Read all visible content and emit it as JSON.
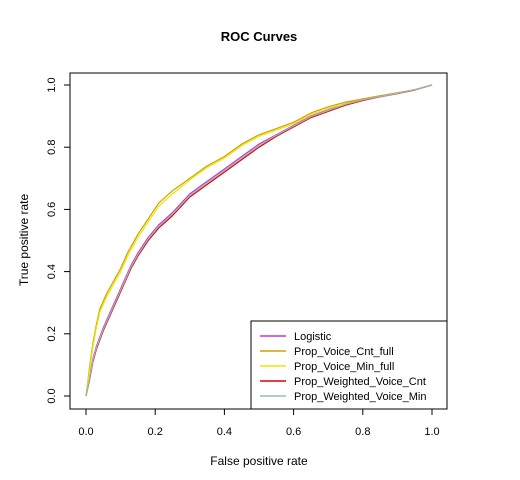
{
  "chart_data": {
    "type": "line",
    "title": "ROC Curves",
    "xlabel": "False positive rate",
    "ylabel": "True positive rate",
    "xlim": [
      0,
      1
    ],
    "ylim": [
      0,
      1
    ],
    "x_ticks": [
      "0.0",
      "0.2",
      "0.4",
      "0.6",
      "0.8",
      "1.0"
    ],
    "y_ticks": [
      "0.0",
      "0.2",
      "0.4",
      "0.6",
      "0.8",
      "1.0"
    ],
    "grid": false,
    "legend_position": "bottom-right",
    "series": [
      {
        "name": "Logistic",
        "color": "#cc33cc",
        "points": [
          [
            0,
            0
          ],
          [
            0.01,
            0.06
          ],
          [
            0.02,
            0.12
          ],
          [
            0.03,
            0.16
          ],
          [
            0.05,
            0.22
          ],
          [
            0.07,
            0.27
          ],
          [
            0.09,
            0.32
          ],
          [
            0.11,
            0.37
          ],
          [
            0.13,
            0.42
          ],
          [
            0.15,
            0.46
          ],
          [
            0.18,
            0.51
          ],
          [
            0.21,
            0.55
          ],
          [
            0.25,
            0.59
          ],
          [
            0.3,
            0.65
          ],
          [
            0.35,
            0.69
          ],
          [
            0.4,
            0.73
          ],
          [
            0.45,
            0.77
          ],
          [
            0.5,
            0.81
          ],
          [
            0.55,
            0.84
          ],
          [
            0.6,
            0.87
          ],
          [
            0.65,
            0.9
          ],
          [
            0.7,
            0.92
          ],
          [
            0.75,
            0.94
          ],
          [
            0.8,
            0.955
          ],
          [
            0.85,
            0.965
          ],
          [
            0.9,
            0.975
          ],
          [
            0.95,
            0.985
          ],
          [
            1,
            1
          ]
        ]
      },
      {
        "name": "Prop_Voice_Cnt_full",
        "color": "#d4a000",
        "points": [
          [
            0,
            0
          ],
          [
            0.01,
            0.09
          ],
          [
            0.02,
            0.17
          ],
          [
            0.03,
            0.23
          ],
          [
            0.04,
            0.28
          ],
          [
            0.06,
            0.33
          ],
          [
            0.08,
            0.37
          ],
          [
            0.1,
            0.41
          ],
          [
            0.12,
            0.46
          ],
          [
            0.15,
            0.52
          ],
          [
            0.18,
            0.57
          ],
          [
            0.21,
            0.62
          ],
          [
            0.25,
            0.66
          ],
          [
            0.3,
            0.7
          ],
          [
            0.35,
            0.74
          ],
          [
            0.4,
            0.77
          ],
          [
            0.45,
            0.81
          ],
          [
            0.5,
            0.84
          ],
          [
            0.55,
            0.86
          ],
          [
            0.6,
            0.88
          ],
          [
            0.65,
            0.91
          ],
          [
            0.7,
            0.93
          ],
          [
            0.75,
            0.945
          ],
          [
            0.8,
            0.955
          ],
          [
            0.85,
            0.965
          ],
          [
            0.9,
            0.975
          ],
          [
            0.95,
            0.985
          ],
          [
            1,
            1
          ]
        ]
      },
      {
        "name": "Prop_Voice_Min_full",
        "color": "#e8e800",
        "points": [
          [
            0,
            0
          ],
          [
            0.01,
            0.08
          ],
          [
            0.02,
            0.16
          ],
          [
            0.03,
            0.22
          ],
          [
            0.04,
            0.27
          ],
          [
            0.06,
            0.32
          ],
          [
            0.08,
            0.36
          ],
          [
            0.1,
            0.4
          ],
          [
            0.12,
            0.45
          ],
          [
            0.15,
            0.51
          ],
          [
            0.18,
            0.56
          ],
          [
            0.21,
            0.61
          ],
          [
            0.25,
            0.65
          ],
          [
            0.3,
            0.695
          ],
          [
            0.35,
            0.735
          ],
          [
            0.4,
            0.765
          ],
          [
            0.45,
            0.805
          ],
          [
            0.5,
            0.835
          ],
          [
            0.55,
            0.855
          ],
          [
            0.6,
            0.875
          ],
          [
            0.65,
            0.905
          ],
          [
            0.7,
            0.925
          ],
          [
            0.75,
            0.94
          ],
          [
            0.8,
            0.952
          ],
          [
            0.85,
            0.962
          ],
          [
            0.9,
            0.973
          ],
          [
            0.95,
            0.984
          ],
          [
            1,
            1
          ]
        ]
      },
      {
        "name": "Prop_Weighted_Voice_Cnt",
        "color": "#dd0000",
        "points": [
          [
            0,
            0
          ],
          [
            0.01,
            0.05
          ],
          [
            0.02,
            0.11
          ],
          [
            0.03,
            0.15
          ],
          [
            0.05,
            0.21
          ],
          [
            0.07,
            0.26
          ],
          [
            0.09,
            0.31
          ],
          [
            0.11,
            0.36
          ],
          [
            0.13,
            0.41
          ],
          [
            0.15,
            0.45
          ],
          [
            0.18,
            0.5
          ],
          [
            0.21,
            0.54
          ],
          [
            0.25,
            0.58
          ],
          [
            0.3,
            0.64
          ],
          [
            0.35,
            0.68
          ],
          [
            0.4,
            0.72
          ],
          [
            0.45,
            0.76
          ],
          [
            0.5,
            0.8
          ],
          [
            0.55,
            0.835
          ],
          [
            0.6,
            0.865
          ],
          [
            0.65,
            0.895
          ],
          [
            0.7,
            0.915
          ],
          [
            0.75,
            0.935
          ],
          [
            0.8,
            0.95
          ],
          [
            0.85,
            0.962
          ],
          [
            0.9,
            0.972
          ],
          [
            0.95,
            0.984
          ],
          [
            1,
            1
          ]
        ]
      },
      {
        "name": "Prop_Weighted_Voice_Min",
        "color": "#99bbbb",
        "points": [
          [
            0,
            0
          ],
          [
            0.01,
            0.055
          ],
          [
            0.02,
            0.115
          ],
          [
            0.03,
            0.155
          ],
          [
            0.05,
            0.215
          ],
          [
            0.07,
            0.265
          ],
          [
            0.09,
            0.315
          ],
          [
            0.11,
            0.365
          ],
          [
            0.13,
            0.415
          ],
          [
            0.15,
            0.455
          ],
          [
            0.18,
            0.505
          ],
          [
            0.21,
            0.545
          ],
          [
            0.25,
            0.585
          ],
          [
            0.3,
            0.645
          ],
          [
            0.35,
            0.685
          ],
          [
            0.4,
            0.725
          ],
          [
            0.45,
            0.765
          ],
          [
            0.5,
            0.805
          ],
          [
            0.55,
            0.838
          ],
          [
            0.6,
            0.868
          ],
          [
            0.65,
            0.898
          ],
          [
            0.7,
            0.918
          ],
          [
            0.75,
            0.938
          ],
          [
            0.8,
            0.952
          ],
          [
            0.85,
            0.963
          ],
          [
            0.9,
            0.973
          ],
          [
            0.95,
            0.985
          ],
          [
            1,
            1
          ]
        ]
      }
    ]
  }
}
